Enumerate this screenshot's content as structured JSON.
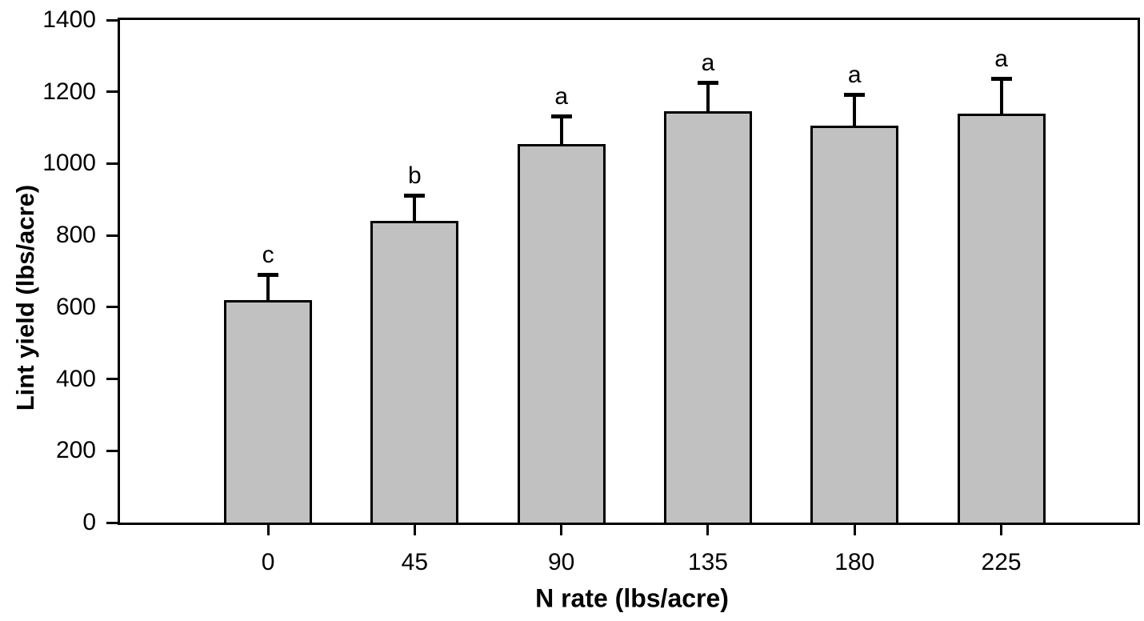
{
  "chart_data": {
    "type": "bar",
    "title": "",
    "xlabel": "N rate (lbs/acre)",
    "ylabel": "Lint yield (lbs/acre)",
    "categories": [
      "0",
      "45",
      "90",
      "135",
      "180",
      "225"
    ],
    "series": [
      {
        "name": "Lint yield",
        "values": [
          620,
          840,
          1055,
          1145,
          1105,
          1140
        ],
        "errors_plus": [
          70,
          70,
          75,
          80,
          85,
          95
        ],
        "sig_letters": [
          "c",
          "b",
          "a",
          "a",
          "a",
          "a"
        ]
      }
    ],
    "ylim": [
      0,
      1400
    ],
    "yticks": [
      0,
      200,
      400,
      600,
      800,
      1000,
      1200,
      1400
    ],
    "grid": false,
    "legend_position": "none",
    "bar_fill_color": "#c1c1c1",
    "bar_border_color": "#000000",
    "axis_color": "#000000",
    "text_color": "#000000",
    "background_color": "#ffffff"
  }
}
